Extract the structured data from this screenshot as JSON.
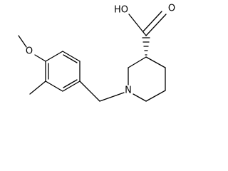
{
  "atoms": {
    "hydroxyl": "HO",
    "carbonyl": "O",
    "nitrogen": "N",
    "methoxy": "O"
  }
}
